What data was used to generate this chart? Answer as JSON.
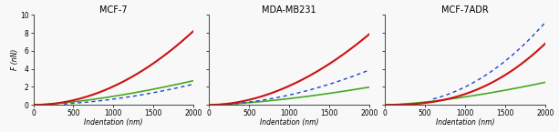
{
  "subplots": [
    {
      "title": "MCF-7",
      "xlim": [
        0,
        2000
      ],
      "ylim": [
        0,
        10
      ],
      "yticks": [
        0,
        2,
        4,
        6,
        8,
        10
      ],
      "xticks": [
        0,
        500,
        1000,
        1500,
        2000
      ],
      "red_exp": 2.0,
      "red_coeff": 2.05e-06,
      "green_exp": 1.5,
      "green_coeff": 3e-05,
      "blue_exp": 1.85,
      "blue_coeff": 1.8e-06,
      "blue_start": 380
    },
    {
      "title": "MDA-MB231",
      "xlim": [
        0,
        2000
      ],
      "ylim": [
        0,
        10
      ],
      "yticks": [
        0,
        2,
        4,
        6,
        8,
        10
      ],
      "xticks": [
        0,
        500,
        1000,
        1500,
        2000
      ],
      "red_exp": 1.9,
      "red_coeff": 4.2e-06,
      "green_exp": 1.5,
      "green_coeff": 2.2e-05,
      "blue_exp": 1.82,
      "blue_coeff": 3.8e-06,
      "blue_start": 150
    },
    {
      "title": "MCF-7ADR",
      "xlim": [
        0,
        2000
      ],
      "ylim": [
        0,
        10
      ],
      "yticks": [
        0,
        2,
        4,
        6,
        8,
        10
      ],
      "xticks": [
        0,
        500,
        1000,
        1500,
        2000
      ],
      "red_exp": 2.5,
      "red_coeff": 3.8e-08,
      "green_exp": 1.5,
      "green_coeff": 2.8e-05,
      "blue_exp": 2.2,
      "blue_coeff": 5e-07,
      "blue_start": 600
    }
  ],
  "xlabel": "Indentation (nm)",
  "ylabel": "F (nN)",
  "red_color": "#cc1111",
  "green_color": "#44aa22",
  "blue_color": "#2244cc",
  "background": "#f8f8f8",
  "fig_width": 6.13,
  "fig_height": 1.45
}
